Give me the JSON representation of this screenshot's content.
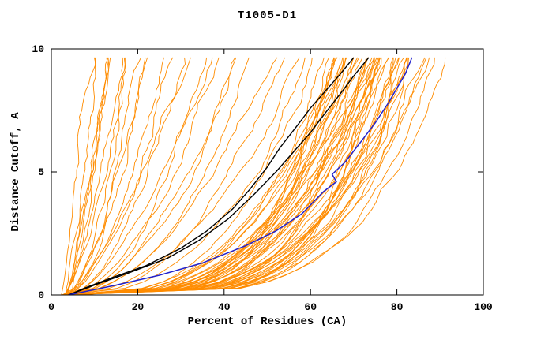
{
  "page": {
    "title": "T1005-D1"
  },
  "chart_data": {
    "type": "line",
    "title": "T1005-D1",
    "xlabel": "Percent of Residues (CA)",
    "ylabel": "Distance Cutoff, A",
    "xlim": [
      0,
      100
    ],
    "ylim": [
      0,
      10
    ],
    "xticks": [
      0,
      20,
      40,
      60,
      80,
      100
    ],
    "yticks": [
      0,
      5,
      10
    ],
    "grid": false,
    "legend": null,
    "colors": {
      "models": "#ff8c00",
      "reference": "#000000",
      "highlight": "#2222cc",
      "axis": "#000000",
      "background": "#ffffff"
    },
    "curve_start_x": 3,
    "curve_top_y": 9.65,
    "noise_seed": 7,
    "model_curve_format": "[x_percent_at_top_cutoff, shape_exponent] approximating x(y)=x0+(xtop-x0)*(y/ytop)^(1/k)",
    "model_curves": [
      [
        10,
        1.0
      ],
      [
        11,
        1.2
      ],
      [
        12,
        1.05
      ],
      [
        13,
        1.3
      ],
      [
        14,
        1.15
      ],
      [
        15,
        1.4
      ],
      [
        16,
        1.2
      ],
      [
        17,
        1.5
      ],
      [
        18,
        1.3
      ],
      [
        20,
        1.6
      ],
      [
        22,
        1.4
      ],
      [
        24,
        1.7
      ],
      [
        26,
        1.5
      ],
      [
        28,
        1.8
      ],
      [
        30,
        1.6
      ],
      [
        32,
        1.9
      ],
      [
        34,
        1.7
      ],
      [
        36,
        2.0
      ],
      [
        39,
        1.8
      ],
      [
        42,
        2.1
      ],
      [
        45,
        1.9
      ],
      [
        48,
        2.2
      ],
      [
        51,
        2.0
      ],
      [
        54,
        2.4
      ],
      [
        57,
        2.2
      ],
      [
        60,
        2.6
      ],
      [
        62,
        3.0
      ],
      [
        63,
        3.5
      ],
      [
        64,
        2.8
      ],
      [
        64,
        4.0
      ],
      [
        65,
        3.2
      ],
      [
        66,
        3.8
      ],
      [
        66,
        4.5
      ],
      [
        67,
        3.0
      ],
      [
        67,
        4.2
      ],
      [
        68,
        3.5
      ],
      [
        68,
        5.0
      ],
      [
        69,
        3.2
      ],
      [
        69,
        4.0
      ],
      [
        70,
        2.9
      ],
      [
        70,
        3.6
      ],
      [
        70,
        4.6
      ],
      [
        71,
        3.3
      ],
      [
        71,
        4.2
      ],
      [
        72,
        3.0
      ],
      [
        72,
        3.8
      ],
      [
        72,
        5.2
      ],
      [
        73,
        3.4
      ],
      [
        73,
        4.4
      ],
      [
        74,
        3.1
      ],
      [
        74,
        4.0
      ],
      [
        74,
        5.5
      ],
      [
        75,
        3.5
      ],
      [
        75,
        4.6
      ],
      [
        76,
        3.2
      ],
      [
        76,
        4.2
      ],
      [
        76,
        5.8
      ],
      [
        77,
        3.6
      ],
      [
        77,
        4.8
      ],
      [
        78,
        3.3
      ],
      [
        78,
        4.4
      ],
      [
        79,
        3.8
      ],
      [
        79,
        5.0
      ],
      [
        80,
        3.5
      ],
      [
        80,
        4.6
      ],
      [
        81,
        4.0
      ],
      [
        81,
        5.4
      ],
      [
        82,
        3.7
      ],
      [
        82,
        4.8
      ],
      [
        83,
        4.2
      ],
      [
        84,
        3.9
      ],
      [
        84,
        5.0
      ],
      [
        85,
        4.4
      ],
      [
        86,
        4.0
      ],
      [
        87,
        4.6
      ],
      [
        88,
        4.2
      ],
      [
        90,
        4.8
      ],
      [
        93,
        4.5
      ]
    ],
    "reference_curves": [
      {
        "name": "reference-black-1",
        "points": [
          [
            4,
            0
          ],
          [
            8,
            0.3
          ],
          [
            14,
            0.7
          ],
          [
            22,
            1.2
          ],
          [
            30,
            1.9
          ],
          [
            36,
            2.6
          ],
          [
            42,
            3.5
          ],
          [
            46,
            4.3
          ],
          [
            50,
            5.2
          ],
          [
            53,
            6.0
          ],
          [
            57,
            6.9
          ],
          [
            60,
            7.6
          ],
          [
            64,
            8.4
          ],
          [
            67,
            9.0
          ],
          [
            70,
            9.65
          ]
        ]
      },
      {
        "name": "reference-black-2",
        "points": [
          [
            4,
            0
          ],
          [
            10,
            0.4
          ],
          [
            18,
            0.9
          ],
          [
            27,
            1.5
          ],
          [
            34,
            2.2
          ],
          [
            41,
            3.1
          ],
          [
            47,
            4.1
          ],
          [
            52,
            5.0
          ],
          [
            56,
            5.8
          ],
          [
            60,
            6.6
          ],
          [
            63,
            7.3
          ],
          [
            67,
            8.2
          ],
          [
            70,
            8.9
          ],
          [
            73.5,
            9.65
          ]
        ]
      }
    ],
    "highlight_curve": {
      "name": "highlight-blue",
      "points": [
        [
          4,
          0
        ],
        [
          15,
          0.4
        ],
        [
          25,
          0.8
        ],
        [
          35,
          1.3
        ],
        [
          45,
          2.0
        ],
        [
          52,
          2.6
        ],
        [
          58,
          3.3
        ],
        [
          63,
          4.2
        ],
        [
          66,
          4.6
        ],
        [
          65,
          4.9
        ],
        [
          68,
          5.4
        ],
        [
          72,
          6.3
        ],
        [
          75,
          7.0
        ],
        [
          78,
          7.8
        ],
        [
          80,
          8.4
        ],
        [
          82,
          9.0
        ],
        [
          83.5,
          9.65
        ]
      ]
    }
  }
}
